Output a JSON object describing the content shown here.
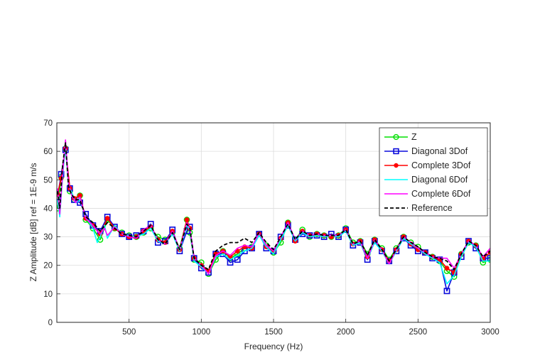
{
  "chart_data": {
    "type": "line",
    "title": "",
    "xlabel": "Frequency (Hz)",
    "ylabel": "Z Amplitude [dB] ref = 1E-9 m/s",
    "xlim": [
      0,
      3000
    ],
    "ylim": [
      0,
      70
    ],
    "xticks": [
      500,
      1000,
      1500,
      2000,
      2500,
      3000
    ],
    "yticks": [
      0,
      10,
      20,
      30,
      40,
      50,
      60,
      70
    ],
    "grid": true,
    "legend_position": "top-right",
    "series": [
      {
        "name": "Z",
        "color": "#00e000",
        "marker": "circle",
        "dash": "",
        "x": [
          5,
          30,
          60,
          90,
          120,
          160,
          200,
          250,
          300,
          350,
          400,
          450,
          500,
          550,
          600,
          650,
          700,
          750,
          800,
          850,
          900,
          920,
          950,
          1000,
          1050,
          1100,
          1150,
          1200,
          1250,
          1300,
          1350,
          1400,
          1450,
          1500,
          1550,
          1600,
          1650,
          1700,
          1750,
          1800,
          1850,
          1900,
          1950,
          2000,
          2050,
          2100,
          2150,
          2200,
          2250,
          2300,
          2350,
          2400,
          2450,
          2500,
          2550,
          2600,
          2650,
          2700,
          2750,
          2800,
          2850,
          2900,
          2950,
          3000
        ],
        "y": [
          40,
          51,
          61,
          46,
          43,
          44.5,
          36,
          33,
          29,
          36,
          33,
          31.5,
          30.5,
          30,
          31.5,
          33,
          30,
          29,
          31.5,
          26,
          36,
          31.5,
          22,
          21,
          17,
          22,
          25,
          22.5,
          24,
          26,
          26.5,
          31,
          27,
          24.5,
          28,
          35,
          29,
          32.5,
          30,
          31,
          30.5,
          30,
          30.5,
          33,
          28,
          28.5,
          24,
          29,
          26,
          22,
          26,
          30,
          28,
          26.5,
          24.5,
          23,
          21.5,
          18,
          16,
          24,
          28,
          27,
          21,
          22
        ]
      },
      {
        "name": "Diagonal 3Dof",
        "color": "#0a0adb",
        "marker": "square",
        "dash": "",
        "x": [
          5,
          30,
          60,
          90,
          120,
          160,
          200,
          250,
          300,
          350,
          400,
          450,
          500,
          550,
          600,
          650,
          700,
          750,
          800,
          850,
          900,
          920,
          950,
          1000,
          1050,
          1100,
          1150,
          1200,
          1250,
          1300,
          1350,
          1400,
          1450,
          1500,
          1550,
          1600,
          1650,
          1700,
          1750,
          1800,
          1850,
          1900,
          1950,
          2000,
          2050,
          2100,
          2150,
          2200,
          2250,
          2300,
          2350,
          2400,
          2450,
          2500,
          2550,
          2600,
          2650,
          2700,
          2750,
          2800,
          2850,
          2900,
          2950,
          3000
        ],
        "y": [
          44,
          52,
          60.5,
          47,
          43,
          42,
          38,
          34,
          32,
          37,
          33.5,
          31,
          30,
          30.5,
          32,
          34.5,
          28,
          28.5,
          32.5,
          25,
          32,
          33.5,
          22.5,
          19,
          17.5,
          24,
          24,
          21,
          22,
          25,
          26,
          31,
          26,
          25,
          30,
          34,
          29,
          31,
          30.5,
          30.5,
          30,
          31,
          30,
          32.5,
          27,
          28,
          22,
          28.5,
          25,
          21.5,
          25,
          29.5,
          27,
          25,
          24.5,
          22.5,
          22,
          11,
          17.5,
          23,
          28.5,
          26,
          22.5,
          22.5
        ]
      },
      {
        "name": "Complete 3Dof",
        "color": "#ff0000",
        "marker": "dot",
        "dash": "",
        "x": [
          5,
          30,
          60,
          90,
          120,
          160,
          200,
          250,
          300,
          350,
          400,
          450,
          500,
          550,
          600,
          650,
          700,
          750,
          800,
          850,
          900,
          920,
          950,
          1000,
          1050,
          1100,
          1150,
          1200,
          1250,
          1300,
          1350,
          1400,
          1450,
          1500,
          1550,
          1600,
          1650,
          1700,
          1750,
          1800,
          1850,
          1900,
          1950,
          2000,
          2050,
          2100,
          2150,
          2200,
          2250,
          2300,
          2350,
          2400,
          2450,
          2500,
          2550,
          2600,
          2650,
          2700,
          2750,
          2800,
          2850,
          2900,
          2950,
          3000
        ],
        "y": [
          45,
          50.5,
          61,
          47,
          43.5,
          44.5,
          36.5,
          34,
          31,
          36.5,
          33,
          31,
          30,
          30,
          32,
          33.5,
          29,
          28,
          32,
          25.5,
          36,
          33,
          22.5,
          20,
          18,
          24,
          25,
          23,
          25,
          26.5,
          26,
          31,
          26.5,
          25,
          29.5,
          35,
          28.5,
          32,
          30.5,
          31,
          30.5,
          30,
          30.5,
          32.5,
          27.5,
          28.5,
          23,
          29,
          25.5,
          21.5,
          25.5,
          30,
          27.5,
          25.5,
          24.5,
          23,
          22,
          19,
          17.5,
          24,
          28.5,
          27,
          22.5,
          24.5
        ]
      },
      {
        "name": "Diagonal 6Dof",
        "color": "#00ffff",
        "marker": "none",
        "dash": "",
        "x": [
          5,
          20,
          40,
          60,
          80,
          100,
          130,
          160,
          200,
          250,
          280,
          300,
          330,
          350,
          400,
          450,
          500,
          550,
          600,
          650,
          700,
          750,
          800,
          850,
          900,
          920,
          950,
          1000,
          1050,
          1100,
          1150,
          1200,
          1250,
          1300,
          1350,
          1400,
          1450,
          1500,
          1550,
          1600,
          1650,
          1700,
          1750,
          1800,
          1850,
          1900,
          1950,
          2000,
          2050,
          2100,
          2150,
          2200,
          2250,
          2300,
          2350,
          2400,
          2450,
          2500,
          2550,
          2600,
          2650,
          2700,
          2750,
          2800,
          2850,
          2900,
          2950,
          3000
        ],
        "y": [
          43,
          37,
          51,
          62,
          48,
          46,
          42,
          43,
          37,
          33,
          28,
          30,
          34,
          29.5,
          34,
          31,
          30.5,
          30,
          31,
          33,
          28.5,
          27.5,
          31,
          25,
          34,
          32.5,
          21.5,
          19.5,
          17,
          23,
          24,
          22,
          23.5,
          25,
          26,
          30.5,
          26.5,
          24,
          29,
          34,
          28.5,
          31.5,
          30,
          30.5,
          30,
          30.5,
          30,
          32,
          27,
          28,
          22.5,
          28,
          25,
          20.5,
          25,
          29.5,
          27.5,
          26,
          24,
          22.5,
          21,
          13.5,
          16.5,
          23,
          28,
          26.5,
          21.5,
          21.5
        ]
      },
      {
        "name": "Complete 6Dof",
        "color": "#ff00ff",
        "marker": "none",
        "dash": "",
        "x": [
          5,
          20,
          40,
          60,
          80,
          100,
          130,
          160,
          200,
          250,
          280,
          300,
          330,
          350,
          400,
          450,
          500,
          550,
          600,
          650,
          700,
          750,
          800,
          850,
          900,
          920,
          950,
          1000,
          1050,
          1100,
          1150,
          1200,
          1250,
          1300,
          1350,
          1400,
          1450,
          1500,
          1550,
          1600,
          1650,
          1700,
          1750,
          1800,
          1850,
          1900,
          1950,
          2000,
          2050,
          2100,
          2150,
          2200,
          2250,
          2300,
          2350,
          2400,
          2450,
          2500,
          2550,
          2600,
          2650,
          2700,
          2750,
          2800,
          2850,
          2900,
          2950,
          3000
        ],
        "y": [
          47,
          38,
          52,
          64,
          49,
          45,
          42,
          44,
          36.5,
          34,
          32,
          31,
          33,
          30.5,
          33.5,
          31,
          30,
          29.5,
          32.5,
          34,
          29,
          27.5,
          32,
          25.5,
          35,
          33,
          22.5,
          20,
          17,
          23.5,
          25,
          23.5,
          26,
          27,
          26.5,
          31.5,
          27,
          25,
          30,
          35,
          29,
          32,
          30.5,
          31,
          30.5,
          30.5,
          30.5,
          32.5,
          27.5,
          28.5,
          22.5,
          29,
          25.5,
          20.5,
          25.5,
          30,
          28,
          26,
          24.5,
          23,
          22.5,
          22.5,
          19,
          24,
          28.5,
          27,
          23,
          26
        ]
      },
      {
        "name": "Reference",
        "color": "#000000",
        "marker": "none",
        "dash": "dashed",
        "x": [
          5,
          20,
          40,
          60,
          80,
          100,
          130,
          160,
          200,
          250,
          300,
          350,
          400,
          450,
          500,
          550,
          600,
          650,
          700,
          750,
          800,
          850,
          900,
          920,
          950,
          1000,
          1050,
          1100,
          1150,
          1200,
          1250,
          1300,
          1350,
          1400,
          1450,
          1500,
          1550,
          1600,
          1650,
          1700,
          1750,
          1800,
          1850,
          1900,
          1950,
          2000,
          2050,
          2100,
          2150,
          2200,
          2250,
          2300,
          2350,
          2400,
          2450,
          2500,
          2550,
          2600,
          2650,
          2700,
          2750,
          2800,
          2850,
          2900,
          2950,
          3000
        ],
        "y": [
          46,
          40,
          55,
          63,
          48,
          45,
          43,
          43,
          37,
          35,
          32,
          35,
          33,
          31,
          30.5,
          30,
          32,
          34,
          29,
          27.5,
          31.5,
          25.5,
          34.5,
          33,
          22.5,
          20,
          18.5,
          25,
          27,
          28,
          28,
          29.5,
          28,
          31.5,
          28,
          25.5,
          30,
          34.5,
          29,
          32,
          30.5,
          31,
          30.5,
          30.5,
          30.5,
          32.5,
          27.5,
          28.5,
          23.5,
          29,
          25.5,
          21.5,
          25.5,
          30,
          28,
          26.5,
          24.5,
          23,
          22.5,
          21.5,
          18.5,
          24,
          28.5,
          27,
          23,
          25
        ]
      }
    ]
  }
}
